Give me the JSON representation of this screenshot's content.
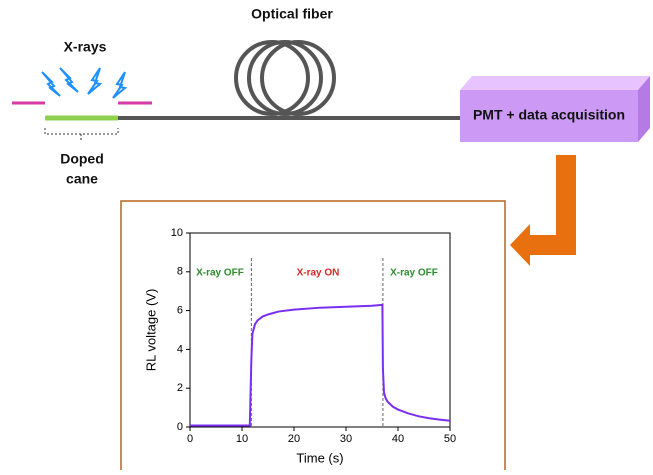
{
  "diagram": {
    "fiber_label": "Optical fiber",
    "xray_label": "X-rays",
    "cane_label": [
      "Doped",
      "cane"
    ],
    "detector_label": "PMT + data acquisition"
  },
  "chart_data": {
    "type": "line",
    "x_label": "Time (s)",
    "y_label": "RL voltage (V)",
    "x": [
      0,
      5,
      11.5,
      11.8,
      12,
      12.5,
      13,
      14,
      15,
      17,
      20,
      25,
      30,
      35,
      37,
      37.1,
      37.3,
      37.6,
      38,
      39,
      40,
      42,
      44,
      46,
      48,
      50
    ],
    "series": [
      {
        "color": "#7a2ff0",
        "values": [
          0.08,
          0.08,
          0.08,
          3.5,
          4.8,
          5.3,
          5.5,
          5.7,
          5.8,
          5.95,
          6.05,
          6.15,
          6.2,
          6.25,
          6.3,
          3,
          1.8,
          1.5,
          1.3,
          1.05,
          0.9,
          0.7,
          0.55,
          0.45,
          0.38,
          0.32
        ]
      }
    ],
    "xlim": [
      0,
      50
    ],
    "xticks": [
      0,
      10,
      20,
      30,
      40,
      50
    ],
    "ylim": [
      0,
      10
    ],
    "yticks": [
      0,
      2,
      4,
      6,
      8,
      10
    ],
    "vlines": [
      11.8,
      37.1
    ],
    "annotations": [
      {
        "text": "X-ray OFF",
        "color": "#2e8b2e"
      },
      {
        "text": "X-ray ON",
        "color": "#d62728"
      },
      {
        "text": "X-ray OFF",
        "color": "#2e8b2e"
      }
    ]
  }
}
